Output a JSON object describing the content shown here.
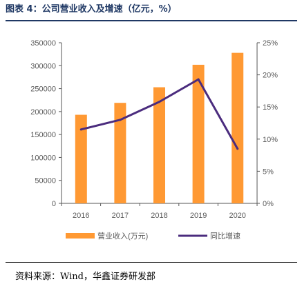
{
  "figure": {
    "title": "图表 4：公司营业收入及增速（亿元，%）",
    "source": "资料来源：Wind，华鑫证券研发部"
  },
  "colors": {
    "bar": "#FF9933",
    "line": "#4B2C7E",
    "title": "#1F3864",
    "axis": "#555555",
    "text": "#595959"
  },
  "chart_data": {
    "type": "bar",
    "categories": [
      "2016",
      "2017",
      "2018",
      "2019",
      "2020"
    ],
    "series": [
      {
        "name": "营业收入(万元)",
        "type": "bar",
        "axis": "left",
        "values": [
          193000,
          219000,
          253000,
          302000,
          328000
        ]
      },
      {
        "name": "同比增速",
        "type": "line",
        "axis": "right",
        "values": [
          0.115,
          0.13,
          0.158,
          0.193,
          0.085
        ]
      }
    ],
    "y_left": {
      "min": 0,
      "max": 350000,
      "ticks": [
        "0",
        "50000",
        "100000",
        "150000",
        "200000",
        "250000",
        "300000",
        "350000"
      ]
    },
    "y_right": {
      "min": 0,
      "max": 0.25,
      "ticks": [
        "0%",
        "5%",
        "10%",
        "15%",
        "20%",
        "25%"
      ]
    },
    "grid": false,
    "legend_position": "bottom"
  }
}
